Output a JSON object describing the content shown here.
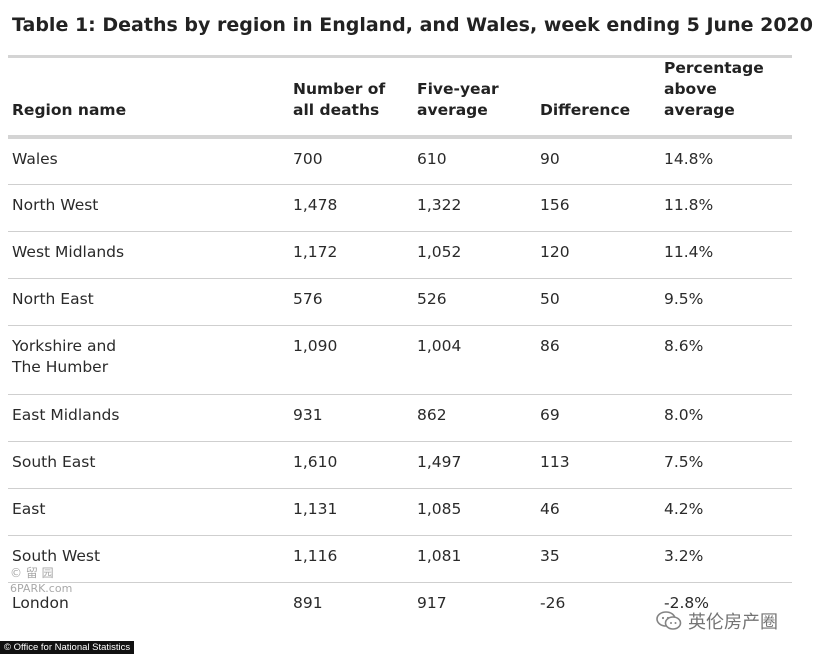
{
  "title": "Table 1: Deaths by region in England, and Wales, week ending 5 June 2020",
  "table": {
    "headers": [
      "Region name",
      "Number of all deaths",
      "Five-year average",
      "Difference",
      "Percentage above average"
    ],
    "rows": [
      {
        "region": "Wales",
        "deaths": "700",
        "avg": "610",
        "diff": "90",
        "pct": "14.8%"
      },
      {
        "region": "North West",
        "deaths": "1,478",
        "avg": "1,322",
        "diff": "156",
        "pct": "11.8%"
      },
      {
        "region": "West Midlands",
        "deaths": "1,172",
        "avg": "1,052",
        "diff": "120",
        "pct": "11.4%"
      },
      {
        "region": "North East",
        "deaths": "576",
        "avg": "526",
        "diff": "50",
        "pct": "9.5%"
      },
      {
        "region": "Yorkshire and The Humber",
        "deaths": "1,090",
        "avg": "1,004",
        "diff": "86",
        "pct": "8.6%"
      },
      {
        "region": "East Midlands",
        "deaths": "931",
        "avg": "862",
        "diff": "69",
        "pct": "8.0%"
      },
      {
        "region": "South East",
        "deaths": "1,610",
        "avg": "1,497",
        "diff": "113",
        "pct": "7.5%"
      },
      {
        "region": "East",
        "deaths": "1,131",
        "avg": "1,085",
        "diff": "46",
        "pct": "4.2%"
      },
      {
        "region": "South West",
        "deaths": "1,116",
        "avg": "1,081",
        "diff": "35",
        "pct": "3.2%"
      },
      {
        "region": "London",
        "deaths": "891",
        "avg": "917",
        "diff": "-26",
        "pct": "-2.8%"
      }
    ]
  },
  "credit": "© Office for National Statistics",
  "watermark_left": {
    "line1": "© 留 园",
    "site": "6PARK.com"
  },
  "watermark_right": "英伦房产圈",
  "icons": {
    "watermark": "chat-bubble-icon"
  }
}
